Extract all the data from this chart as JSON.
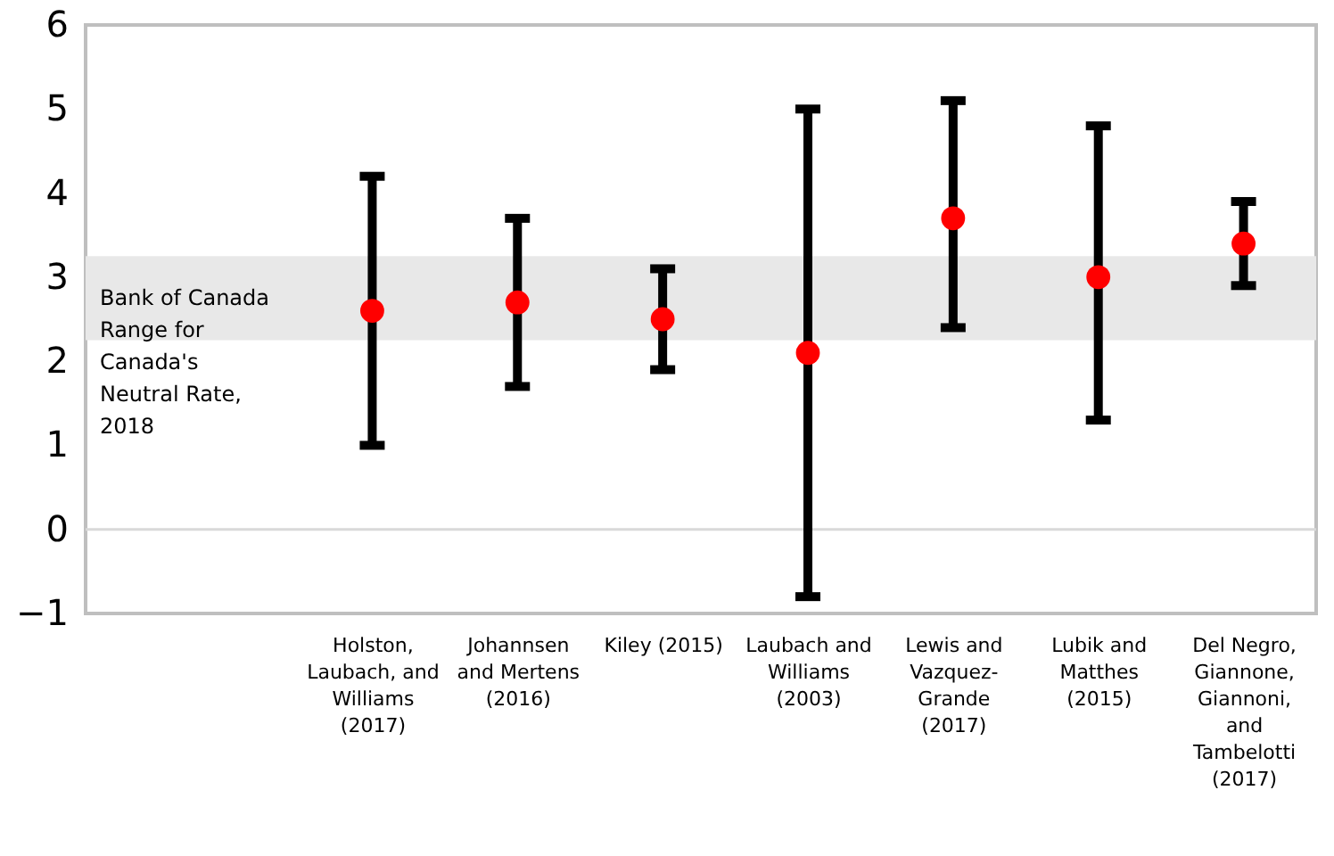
{
  "chart_data": {
    "type": "scatter",
    "categories": [
      "Holston, Laubach, and Williams (2017)",
      "Johannsen and Mertens (2016)",
      "Kiley (2015)",
      "Laubach and Williams (2003)",
      "Lewis and Vazquez-Grande (2017)",
      "Lubik and Matthes (2015)",
      "Del Negro, Giannone, Giannoni, and Tambelotti (2017)"
    ],
    "values": [
      2.6,
      2.7,
      2.5,
      2.1,
      3.7,
      3.0,
      3.4
    ],
    "errors": [
      [
        1.0,
        4.2
      ],
      [
        1.7,
        3.7
      ],
      [
        1.9,
        3.1
      ],
      [
        -0.8,
        5.0
      ],
      [
        2.4,
        5.1
      ],
      [
        1.3,
        4.8
      ],
      [
        2.9,
        3.9
      ]
    ],
    "color": "#ff0000",
    "marker": "circle",
    "ylim": [
      -1,
      6
    ],
    "yticks": [
      -1,
      0,
      1,
      2,
      3,
      4,
      5,
      6
    ],
    "grid": false,
    "bands": [
      {
        "axis": "y",
        "from": 2.25,
        "to": 3.25,
        "label": "Bank of Canada Range for Canada's Neutral Rate, 2018",
        "color": "#e8e8e8"
      }
    ],
    "ref_lines": [
      {
        "axis": "y",
        "value": 0,
        "color": "#d9d9d9"
      }
    ]
  }
}
